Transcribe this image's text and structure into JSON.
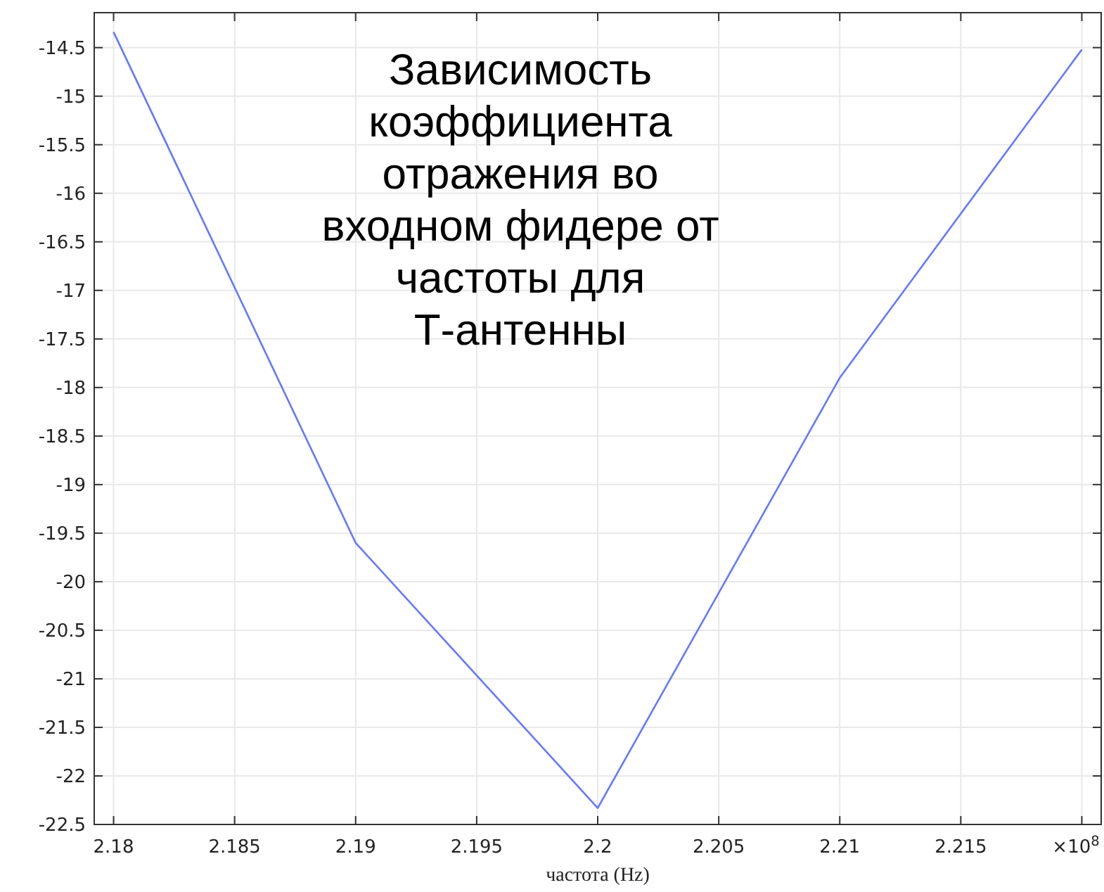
{
  "chart_data": {
    "type": "line",
    "title": "Зависимость коэффициента отражения во входном фидере от частоты для Т-антенны",
    "xlabel": "частота (Hz)",
    "x": [
      2.18,
      2.19,
      2.2,
      2.21,
      2.22
    ],
    "series": [
      {
        "color": "#6677ff",
        "values": [
          -14.34,
          -19.6,
          -22.33,
          -17.9,
          -14.52
        ]
      }
    ],
    "xlim": [
      2.1792,
      2.2208
    ],
    "ylim": [
      -22.5,
      -14.14
    ],
    "xticks": [
      2.18,
      2.185,
      2.19,
      2.195,
      2.2,
      2.205,
      2.21,
      2.215,
      {
        "value": 2.22,
        "label": "×10$^{8}$"
      }
    ],
    "yticks": [
      -22.5,
      -22,
      -21.5,
      -21,
      -20.5,
      -20,
      -19.5,
      -19,
      -18.5,
      -18,
      -17.5,
      -17,
      -16.5,
      -16,
      -15.5,
      -15,
      -14.5
    ],
    "grid": true,
    "marker": "none",
    "line_style": "solid"
  }
}
